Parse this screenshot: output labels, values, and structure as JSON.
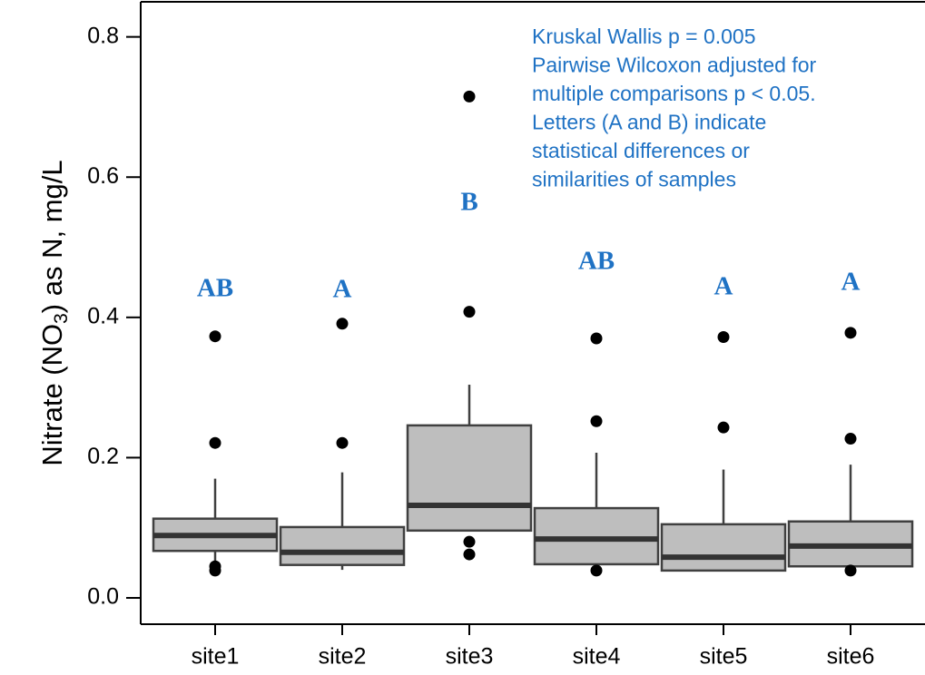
{
  "chart_data": {
    "type": "boxplot",
    "ylabel": [
      "Nitrate (NO",
      "3",
      ") as N, mg/L"
    ],
    "categories": [
      "site1",
      "site2",
      "site3",
      "site4",
      "site5",
      "site6"
    ],
    "boxes": [
      {
        "whislo": 0.05,
        "q1": 0.067,
        "median": 0.089,
        "q3": 0.113,
        "whishi": 0.17,
        "fliers": [
          0.373,
          0.221,
          0.045,
          0.039
        ]
      },
      {
        "whislo": 0.04,
        "q1": 0.047,
        "median": 0.065,
        "q3": 0.101,
        "whishi": 0.179,
        "fliers": [
          0.391,
          0.221
        ]
      },
      {
        "whislo": 0.096,
        "q1": 0.096,
        "median": 0.132,
        "q3": 0.246,
        "whishi": 0.304,
        "fliers": [
          0.715,
          0.408,
          0.08,
          0.062
        ]
      },
      {
        "whislo": 0.04,
        "q1": 0.048,
        "median": 0.084,
        "q3": 0.128,
        "whishi": 0.207,
        "fliers": [
          0.37,
          0.252,
          0.039
        ]
      },
      {
        "whislo": 0.039,
        "q1": 0.039,
        "median": 0.058,
        "q3": 0.105,
        "whishi": 0.183,
        "fliers": [
          0.372,
          0.243
        ]
      },
      {
        "whislo": 0.045,
        "q1": 0.045,
        "median": 0.074,
        "q3": 0.109,
        "whishi": 0.19,
        "fliers": [
          0.378,
          0.227,
          0.039
        ]
      }
    ],
    "box_color": "#bebebe",
    "line_color": "#404040",
    "letters": [
      "AB",
      "A",
      "B",
      "AB",
      "A",
      "A"
    ],
    "annotation": [
      "Kruskal Wallis p = 0.005",
      "Pairwise Wilcoxon adjusted for",
      "multiple comparisons p < 0.05.",
      "Letters (A and B) indicate",
      "statistical differences or",
      "similarities of samples"
    ],
    "ylim": [
      -0.0375,
      0.85
    ],
    "yticks": [
      {
        "value": 0,
        "label": "0.0"
      },
      0.2,
      0.4,
      0.6,
      0.8
    ]
  }
}
